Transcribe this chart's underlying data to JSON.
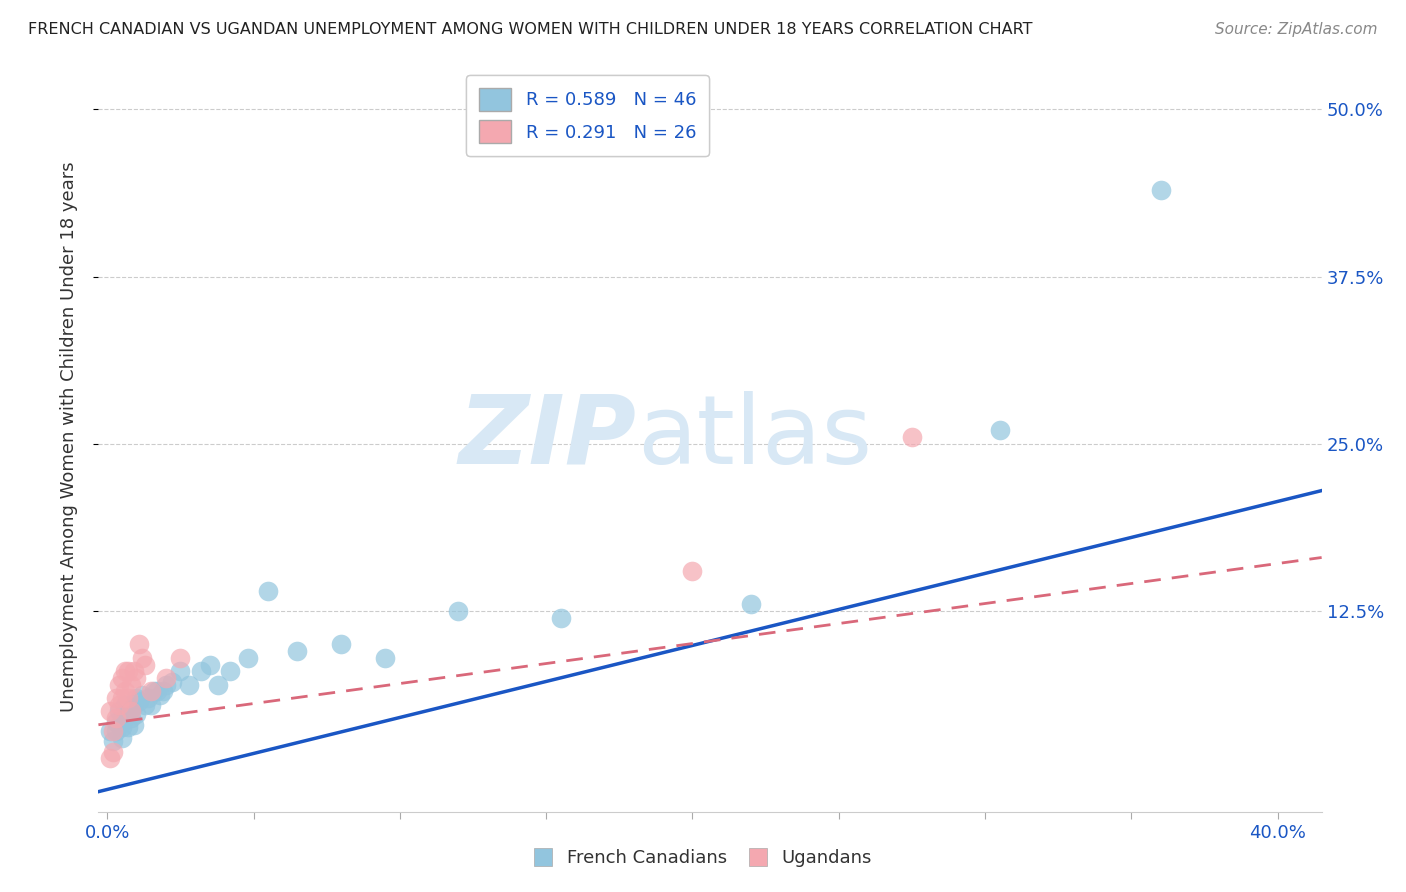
{
  "title": "FRENCH CANADIAN VS UGANDAN UNEMPLOYMENT AMONG WOMEN WITH CHILDREN UNDER 18 YEARS CORRELATION CHART",
  "source": "Source: ZipAtlas.com",
  "ylabel": "Unemployment Among Women with Children Under 18 years",
  "xlabel_ticks_ends": [
    "0.0%",
    "40.0%"
  ],
  "xlabel_vals": [
    0.0,
    0.05,
    0.1,
    0.15,
    0.2,
    0.25,
    0.3,
    0.35,
    0.4
  ],
  "ylabel_ticks": [
    "12.5%",
    "25.0%",
    "37.5%",
    "50.0%"
  ],
  "ylabel_vals": [
    0.125,
    0.25,
    0.375,
    0.5
  ],
  "xlim": [
    -0.003,
    0.415
  ],
  "ylim": [
    -0.025,
    0.535
  ],
  "legend_r_blue": "R = 0.589",
  "legend_n_blue": "N = 46",
  "legend_r_pink": "R = 0.291",
  "legend_n_pink": "N = 26",
  "blue_color": "#92c5de",
  "blue_line_color": "#1a56c4",
  "pink_color": "#f4a8b0",
  "pink_line_color": "#d9687a",
  "watermark_zip": "ZIP",
  "watermark_atlas": "atlas",
  "watermark_color": "#d8e8f5",
  "blue_x": [
    0.001,
    0.002,
    0.003,
    0.003,
    0.004,
    0.004,
    0.005,
    0.005,
    0.005,
    0.006,
    0.006,
    0.007,
    0.007,
    0.008,
    0.008,
    0.009,
    0.009,
    0.01,
    0.01,
    0.011,
    0.012,
    0.013,
    0.014,
    0.015,
    0.016,
    0.017,
    0.018,
    0.019,
    0.02,
    0.022,
    0.025,
    0.028,
    0.032,
    0.035,
    0.038,
    0.042,
    0.048,
    0.055,
    0.065,
    0.08,
    0.095,
    0.12,
    0.155,
    0.22,
    0.305,
    0.36
  ],
  "blue_y": [
    0.035,
    0.028,
    0.042,
    0.035,
    0.05,
    0.04,
    0.042,
    0.038,
    0.03,
    0.055,
    0.045,
    0.048,
    0.038,
    0.052,
    0.045,
    0.055,
    0.04,
    0.06,
    0.048,
    0.058,
    0.062,
    0.055,
    0.06,
    0.055,
    0.065,
    0.065,
    0.062,
    0.065,
    0.07,
    0.072,
    0.08,
    0.07,
    0.08,
    0.085,
    0.07,
    0.08,
    0.09,
    0.14,
    0.095,
    0.1,
    0.09,
    0.125,
    0.12,
    0.13,
    0.26,
    0.44
  ],
  "pink_x": [
    0.001,
    0.001,
    0.002,
    0.002,
    0.003,
    0.003,
    0.004,
    0.004,
    0.005,
    0.005,
    0.006,
    0.006,
    0.007,
    0.007,
    0.008,
    0.008,
    0.009,
    0.01,
    0.011,
    0.012,
    0.013,
    0.015,
    0.02,
    0.025,
    0.2,
    0.275
  ],
  "pink_y": [
    0.015,
    0.05,
    0.02,
    0.035,
    0.06,
    0.045,
    0.07,
    0.055,
    0.075,
    0.06,
    0.08,
    0.065,
    0.08,
    0.06,
    0.07,
    0.05,
    0.08,
    0.075,
    0.1,
    0.09,
    0.085,
    0.065,
    0.075,
    0.09,
    0.155,
    0.255
  ],
  "blue_line_x": [
    -0.003,
    0.415
  ],
  "blue_line_y_start": -0.01,
  "blue_line_y_end": 0.215,
  "pink_line_x": [
    -0.003,
    0.415
  ],
  "pink_line_y_start": 0.04,
  "pink_line_y_end": 0.165
}
